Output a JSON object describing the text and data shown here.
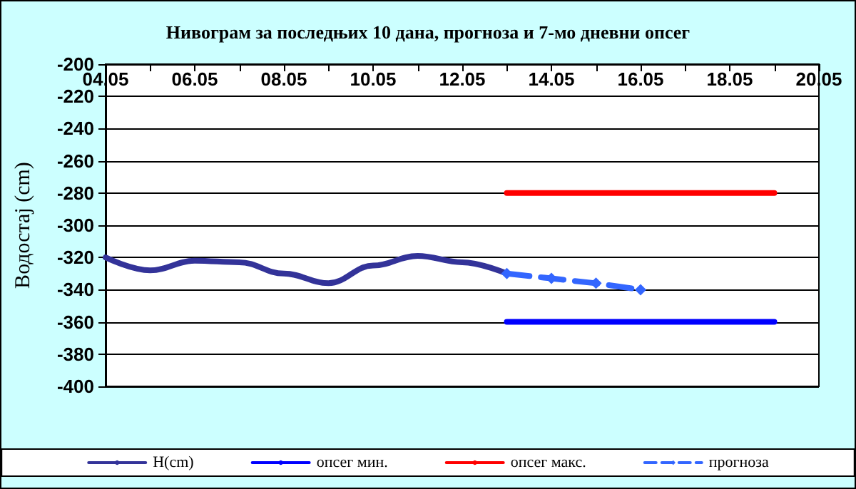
{
  "chart_data": {
    "type": "line",
    "title": "Нивограм за последњих 10 дана, прогноза и 7-мо дневни опсег",
    "ylabel": "Водостај (cm)",
    "xlim": [
      "--05-04",
      "--05-20"
    ],
    "xticks": [
      {
        "value": "--05-04",
        "label": "04.05"
      },
      {
        "value": "--05-05",
        "label": null
      },
      {
        "value": "--05-06",
        "label": "06.05"
      },
      {
        "value": "--05-07",
        "label": null
      },
      {
        "value": "--05-08",
        "label": "08.05"
      },
      {
        "value": "--05-09",
        "label": null
      },
      {
        "value": "--05-10",
        "label": "10.05"
      },
      {
        "value": "--05-11",
        "label": null
      },
      {
        "value": "--05-12",
        "label": "12.05"
      },
      {
        "value": "--05-13",
        "label": null
      },
      {
        "value": "--05-14",
        "label": "14.05"
      },
      {
        "value": "--05-15",
        "label": null
      },
      {
        "value": "--05-16",
        "label": "16.05"
      },
      {
        "value": "--05-17",
        "label": null
      },
      {
        "value": "--05-18",
        "label": "18.05"
      },
      {
        "value": "--05-19",
        "label": null
      },
      {
        "value": "--05-20",
        "label": "20.05"
      }
    ],
    "ylim": [
      -400,
      -200
    ],
    "yticks": [
      -400,
      -380,
      -360,
      -340,
      -320,
      -300,
      -280,
      -260,
      -240,
      -220,
      -200
    ],
    "grid": "y",
    "legend": "bottom",
    "series": [
      {
        "name": "H(cm)",
        "color": "#333399",
        "x": [
          "--05-04",
          "--05-05",
          "--05-06",
          "--05-07",
          "--05-08",
          "--05-09",
          "--05-10",
          "--05-11",
          "--05-12",
          "--05-13"
        ],
        "values": [
          -320,
          -328,
          -322,
          -323,
          -330,
          -336,
          -325,
          -319,
          -323,
          -330
        ]
      },
      {
        "name": "опсег мин.",
        "color": "#0000ff",
        "x": [
          "--05-13",
          "--05-19"
        ],
        "values": [
          -360,
          -360
        ]
      },
      {
        "name": "опсег макс.",
        "color": "#ff0000",
        "x": [
          "--05-13",
          "--05-19"
        ],
        "values": [
          -280,
          -280
        ]
      },
      {
        "name": "прогноза",
        "color": "#3366ff",
        "x": [
          "--05-13",
          "--05-14",
          "--05-15",
          "--05-16"
        ],
        "values": [
          -330,
          -333,
          -336,
          -340
        ],
        "marker": "diamond",
        "line_style": "dashed"
      }
    ]
  }
}
